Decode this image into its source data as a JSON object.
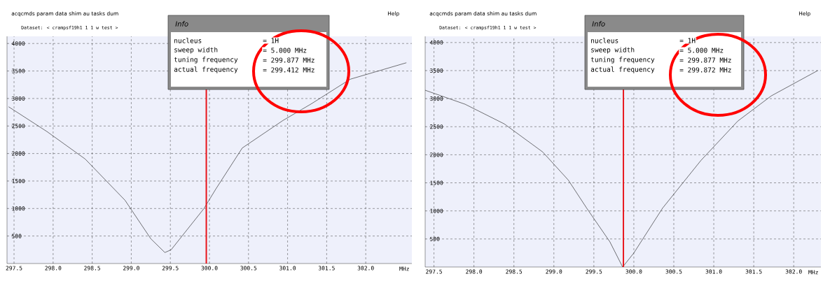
{
  "chart_data": [
    {
      "type": "line",
      "xlabel": "MHz",
      "color": "#1a1a1a",
      "grid": true,
      "x": [
        297.43,
        297.92,
        298.41,
        298.92,
        299.25,
        299.43,
        299.51,
        299.93,
        300.08,
        300.42,
        300.94,
        301.3,
        301.8,
        302.16,
        302.52
      ],
      "values": [
        2850,
        2400,
        1900,
        1150,
        450,
        200,
        250,
        1000,
        1350,
        2100,
        2600,
        2900,
        3350,
        3500,
        3650
      ],
      "xlim": [
        297.41,
        302.59
      ],
      "ylim": [
        0,
        4130
      ],
      "xticks": [
        {
          "value": 297.5,
          "label": "297.5"
        },
        {
          "value": 298,
          "label": "298.0"
        },
        {
          "value": 298.5,
          "label": "298.5"
        },
        {
          "value": 299,
          "label": "299.0"
        },
        {
          "value": 299.5,
          "label": "299.5"
        },
        {
          "value": 300,
          "label": "300.0"
        },
        {
          "value": 300.5,
          "label": "300.5"
        },
        {
          "value": 301,
          "label": "301.0"
        },
        {
          "value": 301.5,
          "label": "301.5"
        },
        {
          "value": 302,
          "label": "302.0"
        }
      ],
      "yticks": [
        500,
        1000,
        1500,
        2000,
        2500,
        3000,
        3500,
        4000
      ],
      "ref_lines": [
        {
          "axis": "x",
          "value": 299.96,
          "color": "#e8141a"
        }
      ],
      "annotations": [
        "acqcmds param data shim au tasks dum",
        "Help",
        "Dataset: < crampsf19h1 1 1 w test >",
        "Info",
        "nucleus",
        "= 1H",
        "sweep width",
        "= 5.000 MHz",
        "tuning frequency",
        "= 299.877 MHz",
        "actual frequency",
        "= 299.412 MHz"
      ]
    },
    {
      "type": "line",
      "xlabel": "MHz",
      "color": "#1a1a1a",
      "grid": true,
      "x": [
        297.39,
        297.89,
        298.38,
        298.86,
        299.18,
        299.41,
        299.7,
        299.86,
        300.0,
        300.36,
        300.84,
        301.3,
        301.72,
        302.3
      ],
      "values": [
        3150,
        2900,
        2550,
        2050,
        1550,
        1050,
        450,
        0,
        250,
        1050,
        1900,
        2600,
        3050,
        3500
      ],
      "xlim": [
        297.39,
        302.34
      ],
      "ylim": [
        0,
        4110
      ],
      "xticks": [
        {
          "value": 297.5,
          "label": "297.5"
        },
        {
          "value": 298,
          "label": "298.0"
        },
        {
          "value": 298.5,
          "label": "298.5"
        },
        {
          "value": 299,
          "label": "299.0"
        },
        {
          "value": 299.5,
          "label": "299.5"
        },
        {
          "value": 300,
          "label": "300.0"
        },
        {
          "value": 300.5,
          "label": "300.5"
        },
        {
          "value": 301,
          "label": "301.0"
        },
        {
          "value": 301.5,
          "label": "301.5"
        },
        {
          "value": 302,
          "label": "302.0"
        }
      ],
      "yticks": [
        500,
        1000,
        1500,
        2000,
        2500,
        3000,
        3500,
        4000
      ],
      "ref_lines": [
        {
          "axis": "x",
          "value": 299.87,
          "color": "#e8141a"
        }
      ],
      "annotations": [
        "acqcmds param data shim au tasks dum",
        "Help",
        "Dataset: < crampsf19h1 1 1 w test >",
        "Info",
        "nucleus",
        "= 1H",
        "sweep width",
        "= 5.000 MHz",
        "tuning frequency",
        "= 299.877 MHz",
        "actual frequency",
        "= 299.872 MHz"
      ]
    }
  ]
}
